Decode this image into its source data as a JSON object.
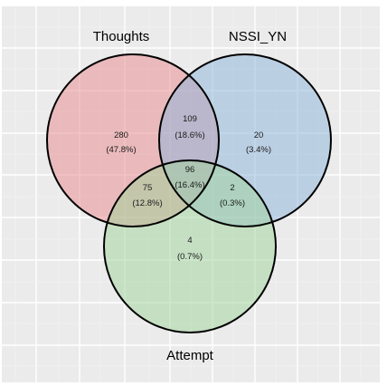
{
  "chart_data": {
    "type": "venn",
    "sets": [
      {
        "name": "Thoughts",
        "color": "#E8878C"
      },
      {
        "name": "NSSI_YN",
        "color": "#8CB4DC"
      },
      {
        "name": "Attempt",
        "color": "#A0D49A"
      }
    ],
    "regions": [
      {
        "sets": [
          "Thoughts"
        ],
        "count": "280",
        "percent": "(47.8%)"
      },
      {
        "sets": [
          "Thoughts",
          "NSSI_YN"
        ],
        "count": "109",
        "percent": "(18.6%)"
      },
      {
        "sets": [
          "NSSI_YN"
        ],
        "count": "20",
        "percent": "(3.4%)"
      },
      {
        "sets": [
          "Thoughts",
          "NSSI_YN",
          "Attempt"
        ],
        "count": "96",
        "percent": "(16.4%)"
      },
      {
        "sets": [
          "Thoughts",
          "Attempt"
        ],
        "count": "75",
        "percent": "(12.8%)"
      },
      {
        "sets": [
          "NSSI_YN",
          "Attempt"
        ],
        "count": "2",
        "percent": "(0.3%)"
      },
      {
        "sets": [
          "Attempt"
        ],
        "count": "4",
        "percent": "(0.7%)"
      }
    ],
    "grid": true,
    "background": "#EBEBEB"
  }
}
